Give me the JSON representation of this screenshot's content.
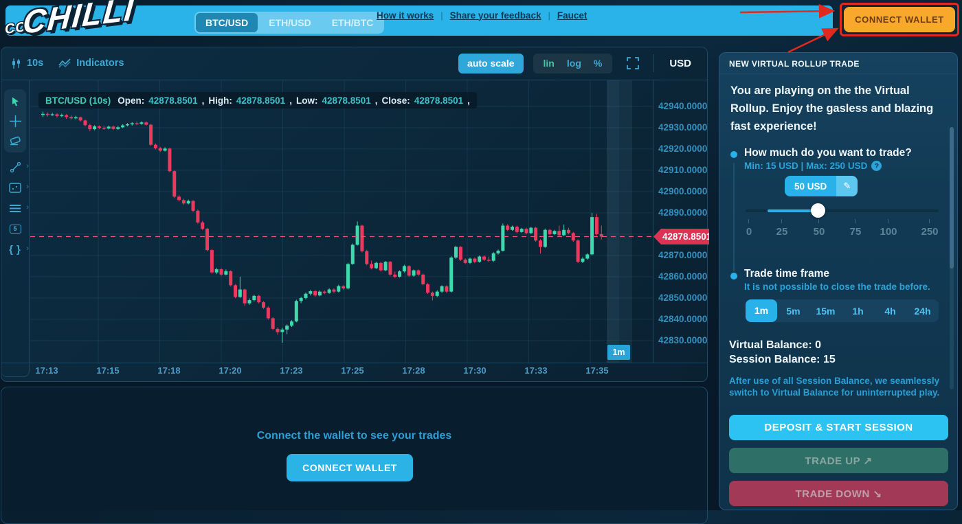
{
  "header": {
    "logo_prefix": "CO",
    "logo": "CHILLI",
    "pairs": [
      "BTC/USD",
      "ETH/USD",
      "ETH/BTC"
    ],
    "active_pair": "BTC/USD",
    "links": [
      "How it works",
      "Share your feedback",
      "Faucet"
    ],
    "connect_wallet_label": "CONNECT WALLET",
    "annotation_color": "#e02a20",
    "accent_color": "#2ab3e8",
    "wallet_button_color": "#f8a82a"
  },
  "chart_toolbar": {
    "interval": "10s",
    "indicators_label": "Indicators",
    "autoscale_label": "auto scale",
    "scale_modes": [
      "lin",
      "log",
      "%"
    ],
    "currency": "USD"
  },
  "legend": {
    "pair": "BTC/USD (10s)",
    "items": [
      {
        "label": "Open:",
        "value": "42878.8501"
      },
      {
        "label": "High:",
        "value": "42878.8501"
      },
      {
        "label": "Low:",
        "value": "42878.8501"
      },
      {
        "label": "Close:",
        "value": "42878.8501"
      }
    ]
  },
  "price_axis_current_tag": "42878.8501",
  "countdown_badge": "1m",
  "trades_panel": {
    "hint": "Connect the wallet to see your trades",
    "connect_wallet_label": "CONNECT WALLET"
  },
  "trade_panel": {
    "title": "NEW VIRTUAL ROLLUP TRADE",
    "intro": "You are playing on the the Virtual Rollup. Enjoy the gasless and blazing fast experience!",
    "amount": {
      "question": "How much do you want to trade?",
      "limits": "Min: 15 USD | Max: 250 USD",
      "value_chip": "50 USD",
      "current_value": 50,
      "scale": [
        "0",
        "25",
        "50",
        "75",
        "100",
        "250"
      ]
    },
    "timeframe": {
      "title": "Trade time frame",
      "subtitle": "It is not possible to close the trade before.",
      "options": [
        "1m",
        "5m",
        "15m",
        "1h",
        "4h",
        "24h"
      ],
      "active": "1m"
    },
    "virtual_balance": "Virtual Balance: 0",
    "session_balance": "Session Balance: 15",
    "note": "After use of all Session Balance, we seamlessly switch to Virtual Balance for uninterrupted play.",
    "deposit_label": "DEPOSIT & START SESSION",
    "trade_up_label": "TRADE UP ↗",
    "trade_down_label": "TRADE DOWN ↘"
  },
  "chart_data": {
    "type": "candlestick",
    "title": "BTC/USD (10s)",
    "interval": "10s",
    "current_price": 42878.8501,
    "up_color": "#3ed9ac",
    "down_color": "#ec3a5f",
    "y_axis_labels": [
      "42940.0000",
      "42930.0000",
      "42920.0000",
      "42910.0000",
      "42900.0000",
      "42890.0000",
      "42870.0000",
      "42860.0000",
      "42850.0000",
      "42840.0000",
      "42830.0000"
    ],
    "y_range": [
      42819,
      42944
    ],
    "x_axis_labels": [
      "17:13",
      "17:15",
      "17:18",
      "17:20",
      "17:23",
      "17:25",
      "17:28",
      "17:30",
      "17:33",
      "17:35"
    ],
    "candles_ohlc": [
      [
        42936.0,
        42937.5,
        42935.0,
        42936.5
      ],
      [
        42936.5,
        42937.2,
        42935.2,
        42936.0
      ],
      [
        42936.0,
        42937.0,
        42935.5,
        42936.3
      ],
      [
        42936.3,
        42936.8,
        42934.8,
        42935.5
      ],
      [
        42935.5,
        42936.6,
        42935.0,
        42935.9
      ],
      [
        42935.9,
        42936.4,
        42934.2,
        42935.0
      ],
      [
        42935.0,
        42935.8,
        42933.8,
        42934.4
      ],
      [
        42934.4,
        42935.6,
        42933.9,
        42934.9
      ],
      [
        42934.9,
        42935.2,
        42932.8,
        42933.4
      ],
      [
        42933.4,
        42933.8,
        42930.6,
        42931.2
      ],
      [
        42931.2,
        42931.8,
        42928.4,
        42929.3
      ],
      [
        42929.3,
        42931.2,
        42928.8,
        42930.6
      ],
      [
        42930.6,
        42931.1,
        42929.3,
        42929.9
      ],
      [
        42929.9,
        42930.8,
        42929.0,
        42929.6
      ],
      [
        42929.6,
        42931.0,
        42929.2,
        42930.5
      ],
      [
        42930.5,
        42931.0,
        42928.9,
        42929.4
      ],
      [
        42929.4,
        42930.8,
        42929.0,
        42930.2
      ],
      [
        42930.2,
        42931.6,
        42929.8,
        42931.1
      ],
      [
        42931.1,
        42932.2,
        42930.6,
        42931.6
      ],
      [
        42931.6,
        42932.6,
        42931.0,
        42932.1
      ],
      [
        42932.1,
        42932.8,
        42931.2,
        42931.8
      ],
      [
        42931.8,
        42933.0,
        42931.4,
        42932.5
      ],
      [
        42932.5,
        42933.0,
        42930.9,
        42931.4
      ],
      [
        42931.4,
        42931.8,
        42921.4,
        42922.0
      ],
      [
        42922.0,
        42922.6,
        42919.8,
        42920.4
      ],
      [
        42920.4,
        42921.0,
        42918.6,
        42919.2
      ],
      [
        42919.2,
        42920.8,
        42918.8,
        42920.2
      ],
      [
        42920.2,
        42920.6,
        42909.0,
        42909.6
      ],
      [
        42909.6,
        42910.0,
        42897.0,
        42897.6
      ],
      [
        42897.6,
        42898.4,
        42895.4,
        42896.0
      ],
      [
        42896.0,
        42896.6,
        42893.8,
        42894.4
      ],
      [
        42894.4,
        42896.2,
        42894.0,
        42895.6
      ],
      [
        42895.6,
        42896.0,
        42890.4,
        42891.0
      ],
      [
        42891.0,
        42891.6,
        42884.9,
        42885.5
      ],
      [
        42885.5,
        42886.2,
        42881.9,
        42882.5
      ],
      [
        42882.5,
        42883.0,
        42871.9,
        42872.5
      ],
      [
        42872.5,
        42873.0,
        42861.4,
        42862.0
      ],
      [
        42862.0,
        42864.2,
        42861.2,
        42863.5
      ],
      [
        42863.5,
        42864.0,
        42860.4,
        42861.0
      ],
      [
        42861.0,
        42863.4,
        42860.6,
        42862.6
      ],
      [
        42862.6,
        42863.0,
        42855.4,
        42856.0
      ],
      [
        42856.0,
        42856.5,
        42849.9,
        42850.5
      ],
      [
        42850.5,
        42860.0,
        42850.0,
        42854.0
      ],
      [
        42854.0,
        42854.4,
        42846.4,
        42847.5
      ],
      [
        42847.5,
        42849.8,
        42846.8,
        42849.0
      ],
      [
        42849.0,
        42851.6,
        42848.4,
        42851.0
      ],
      [
        42851.0,
        42851.5,
        42847.4,
        42848.0
      ],
      [
        42848.0,
        42848.5,
        42844.9,
        42845.5
      ],
      [
        42845.5,
        42846.0,
        42839.9,
        42840.5
      ],
      [
        42840.5,
        42841.0,
        42834.9,
        42835.5
      ],
      [
        42835.5,
        42836.2,
        42832.8,
        42834.0
      ],
      [
        42834.0,
        42836.0,
        42829.0,
        42835.2
      ],
      [
        42835.2,
        42837.6,
        42833.0,
        42837.0
      ],
      [
        42837.0,
        42839.6,
        42836.4,
        42839.0
      ],
      [
        42839.0,
        42849.2,
        42838.6,
        42848.6
      ],
      [
        42848.6,
        42850.6,
        42847.6,
        42850.0
      ],
      [
        42850.0,
        42852.6,
        42849.4,
        42852.0
      ],
      [
        42852.0,
        42853.8,
        42851.2,
        42853.2
      ],
      [
        42853.2,
        42853.8,
        42850.6,
        42851.2
      ],
      [
        42851.2,
        42853.6,
        42850.8,
        42853.0
      ],
      [
        42853.0,
        42853.6,
        42851.8,
        42852.4
      ],
      [
        42852.4,
        42854.6,
        42852.0,
        42854.0
      ],
      [
        42854.0,
        42854.6,
        42852.4,
        42853.0
      ],
      [
        42853.0,
        42856.2,
        42852.6,
        42855.6
      ],
      [
        42855.6,
        42856.0,
        42853.9,
        42854.5
      ],
      [
        42854.5,
        42866.6,
        42854.0,
        42866.0
      ],
      [
        42866.0,
        42875.6,
        42865.6,
        42875.0
      ],
      [
        42875.0,
        42886.0,
        42874.6,
        42884.0
      ],
      [
        42884.0,
        42884.4,
        42871.4,
        42872.0
      ],
      [
        42872.0,
        42872.6,
        42865.4,
        42866.0
      ],
      [
        42866.0,
        42867.6,
        42863.4,
        42864.0
      ],
      [
        42864.0,
        42867.0,
        42863.6,
        42866.5
      ],
      [
        42866.5,
        42867.0,
        42862.4,
        42863.0
      ],
      [
        42863.0,
        42867.4,
        42862.6,
        42867.0
      ],
      [
        42867.0,
        42867.4,
        42860.4,
        42861.0
      ],
      [
        42861.0,
        42862.4,
        42859.4,
        42860.0
      ],
      [
        42860.0,
        42863.0,
        42859.6,
        42862.5
      ],
      [
        42862.5,
        42865.6,
        42862.0,
        42865.0
      ],
      [
        42865.0,
        42865.4,
        42859.9,
        42860.5
      ],
      [
        42860.5,
        42863.4,
        42860.0,
        42863.0
      ],
      [
        42863.0,
        42863.4,
        42860.4,
        42861.0
      ],
      [
        42861.0,
        42861.5,
        42855.9,
        42856.5
      ],
      [
        42856.5,
        42857.0,
        42851.9,
        42852.5
      ],
      [
        42852.5,
        42853.0,
        42848.9,
        42851.0
      ],
      [
        42851.0,
        42853.6,
        42850.4,
        42853.0
      ],
      [
        42853.0,
        42856.0,
        42852.4,
        42855.5
      ],
      [
        42855.5,
        42856.0,
        42852.4,
        42853.0
      ],
      [
        42853.0,
        42869.6,
        42852.6,
        42869.0
      ],
      [
        42869.0,
        42874.6,
        42868.4,
        42874.0
      ],
      [
        42874.0,
        42874.4,
        42867.4,
        42868.0
      ],
      [
        42868.0,
        42868.6,
        42865.9,
        42866.5
      ],
      [
        42866.5,
        42869.0,
        42866.0,
        42868.5
      ],
      [
        42868.5,
        42869.0,
        42866.4,
        42867.0
      ],
      [
        42867.0,
        42870.0,
        42866.6,
        42869.5
      ],
      [
        42869.5,
        42870.0,
        42867.4,
        42868.0
      ],
      [
        42868.0,
        42869.4,
        42866.9,
        42867.5
      ],
      [
        42867.5,
        42871.6,
        42867.0,
        42871.0
      ],
      [
        42871.0,
        42872.8,
        42870.4,
        42872.2
      ],
      [
        42872.2,
        42885.0,
        42871.8,
        42884.0
      ],
      [
        42884.0,
        42884.6,
        42881.4,
        42882.0
      ],
      [
        42882.0,
        42884.0,
        42881.6,
        42883.5
      ],
      [
        42883.5,
        42884.0,
        42880.4,
        42881.0
      ],
      [
        42881.0,
        42883.0,
        42880.6,
        42882.5
      ],
      [
        42882.5,
        42883.0,
        42879.9,
        42880.5
      ],
      [
        42880.5,
        42883.4,
        42880.0,
        42883.0
      ],
      [
        42883.0,
        42883.4,
        42876.4,
        42877.0
      ],
      [
        42877.0,
        42877.6,
        42870.9,
        42874.0
      ],
      [
        42874.0,
        42882.6,
        42873.6,
        42882.0
      ],
      [
        42882.0,
        42882.4,
        42879.4,
        42880.0
      ],
      [
        42880.0,
        42882.0,
        42879.6,
        42881.5
      ],
      [
        42881.5,
        42884.0,
        42879.0,
        42879.5
      ],
      [
        42879.5,
        42884.5,
        42879.0,
        42882.0
      ],
      [
        42882.0,
        42883.0,
        42879.9,
        42880.5
      ],
      [
        42880.5,
        42881.0,
        42876.4,
        42877.0
      ],
      [
        42877.0,
        42877.5,
        42866.4,
        42867.0
      ],
      [
        42867.0,
        42869.2,
        42866.4,
        42868.5
      ],
      [
        42868.5,
        42871.0,
        42868.0,
        42870.5
      ],
      [
        42870.5,
        42890.0,
        42870.0,
        42888.0
      ],
      [
        42888.0,
        42889.5,
        42879.4,
        42880.0
      ],
      [
        42880.0,
        42884.0,
        42877.5,
        42878.85
      ]
    ]
  }
}
